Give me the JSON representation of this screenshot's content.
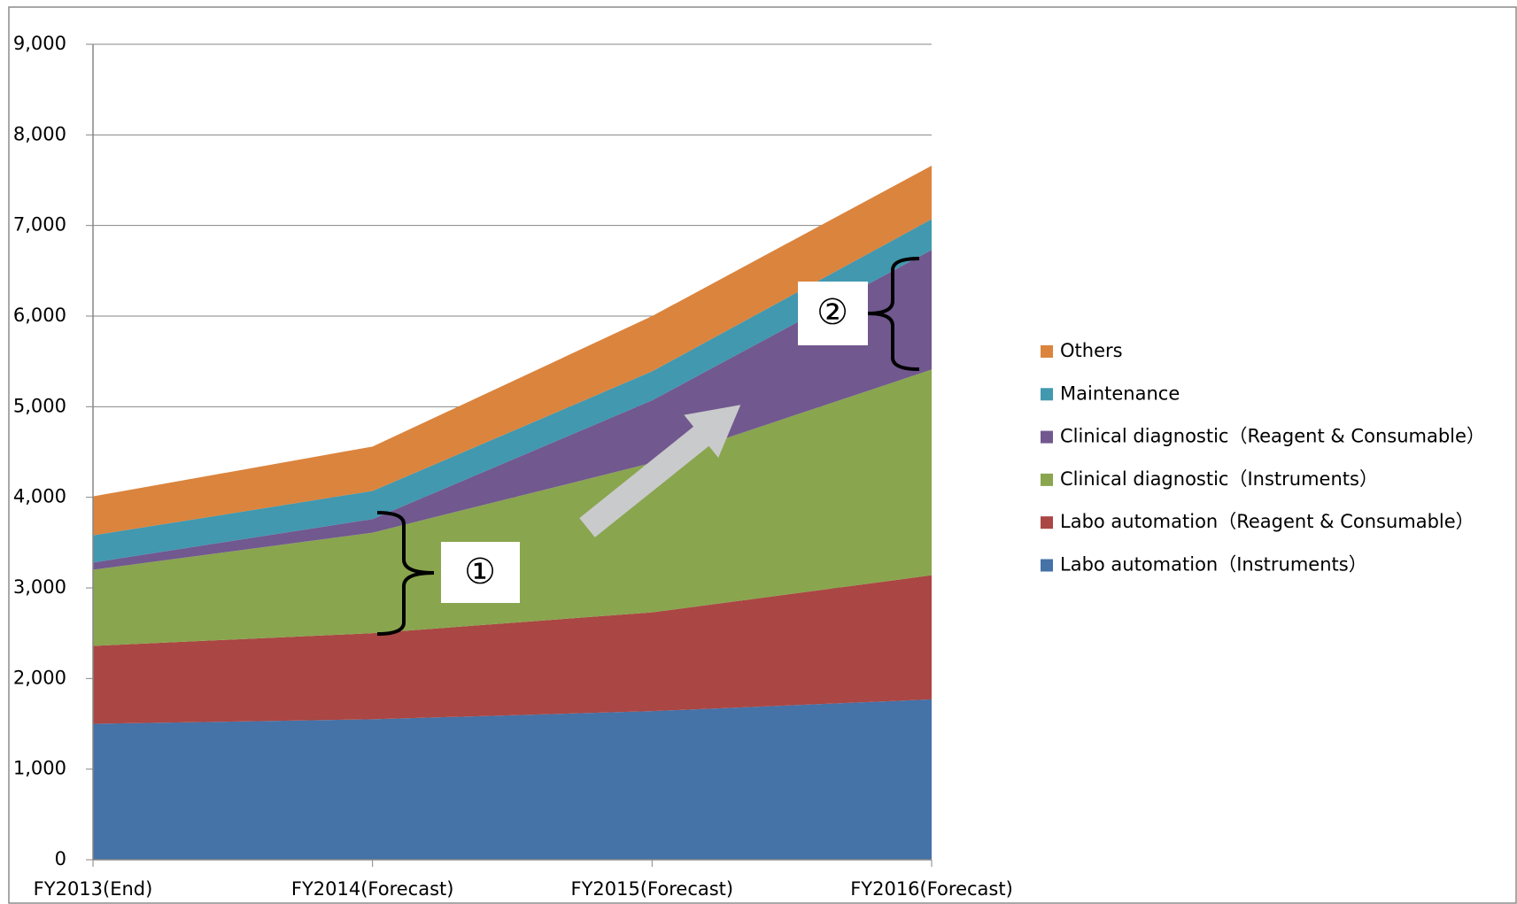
{
  "chart_data": {
    "type": "stacked_area",
    "categories": [
      "FY2013(End)",
      "FY2014(Forecast)",
      "FY2015(Forecast)",
      "FY2016(Forecast)"
    ],
    "series": [
      {
        "name": "Labo automation（Instruments）",
        "color": "#4572a7",
        "values": [
          1500,
          1550,
          1640,
          1770
        ]
      },
      {
        "name": "Labo automation（Reagent & Consumable）",
        "color": "#aa4643",
        "values": [
          860,
          950,
          1090,
          1370
        ]
      },
      {
        "name": "Clinical diagnostic（Instruments）",
        "color": "#89a54e",
        "values": [
          840,
          1110,
          1650,
          2270
        ]
      },
      {
        "name": "Clinical diagnostic（Reagent & Consumable）",
        "color": "#71588f",
        "values": [
          80,
          150,
          690,
          1320
        ]
      },
      {
        "name": "Maintenance",
        "color": "#4198af",
        "values": [
          300,
          310,
          320,
          340
        ]
      },
      {
        "name": "Others",
        "color": "#db843d",
        "values": [
          430,
          490,
          610,
          590
        ]
      }
    ],
    "ylim": [
      0,
      9000
    ],
    "yticks": [
      0,
      {
        "value": 1000,
        "label": "1,000"
      },
      {
        "value": 2000,
        "label": "2,000"
      },
      {
        "value": 3000,
        "label": "3,000"
      },
      {
        "value": 4000,
        "label": "4,000"
      },
      {
        "value": 5000,
        "label": "5,000"
      },
      {
        "value": 6000,
        "label": "6,000"
      },
      {
        "value": 7000,
        "label": "7,000"
      },
      {
        "value": 8000,
        "label": "8,000"
      },
      {
        "value": 9000,
        "label": "9,000"
      }
    ],
    "grid": true,
    "legend": "right",
    "annotations": [
      "①",
      "②"
    ]
  }
}
